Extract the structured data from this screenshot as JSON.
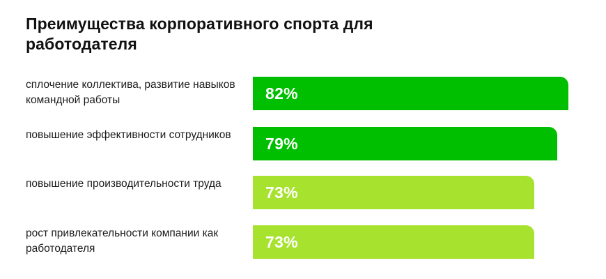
{
  "chart_data": {
    "type": "bar",
    "orientation": "horizontal",
    "title": "Преимущества корпоративного спорта для работодателя",
    "categories": [
      "сплочение коллектива, развитие навыков командной работы",
      "повышение эффективности сотрудников",
      "повышение производительности труда",
      "рост привлекательности компании как работодателя"
    ],
    "values": [
      82,
      79,
      73,
      73
    ],
    "value_labels": [
      "82%",
      "79%",
      "73%",
      "73%"
    ],
    "unit": "%",
    "xlim": [
      0,
      100
    ],
    "grid": false,
    "legend": "none",
    "colors": [
      "#00bf00",
      "#00bf00",
      "#a6e22e",
      "#a6e22e"
    ]
  },
  "rows": [
    {
      "label": "сплочение коллектива, развитие навыков командной работы",
      "value_label": "82%"
    },
    {
      "label": "повышение эффективности сотрудников",
      "value_label": "79%"
    },
    {
      "label": "повышение производительности труда",
      "value_label": "73%"
    },
    {
      "label": "рост привлекательности компании как работодателя",
      "value_label": "73%"
    }
  ]
}
